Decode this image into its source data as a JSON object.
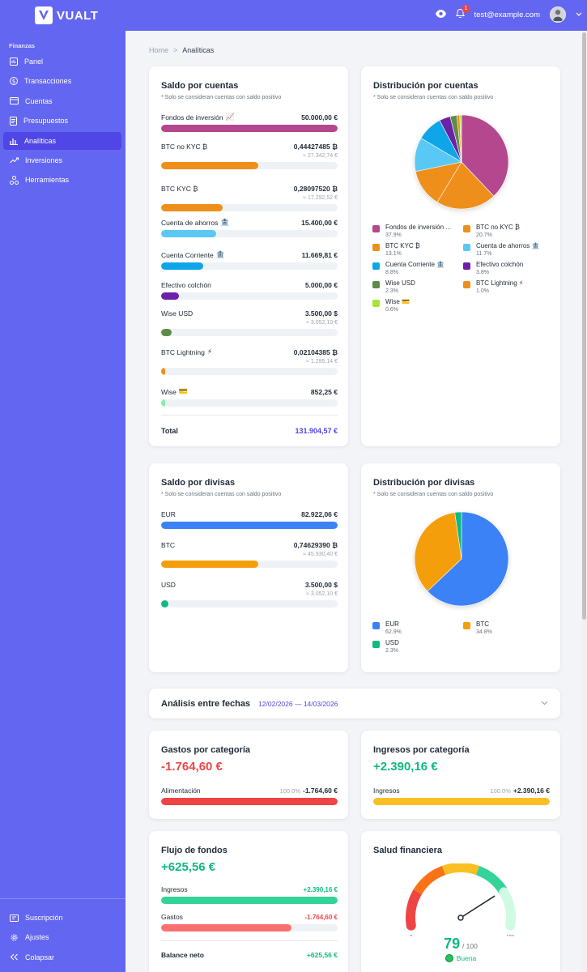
{
  "app": {
    "name": "VUALT",
    "logo_letter": "V"
  },
  "header": {
    "notifications": "1",
    "user_email": "test@example.com"
  },
  "sidebar": {
    "section": "Finanzas",
    "items": [
      {
        "label": "Panel",
        "icon": "dashboard-icon"
      },
      {
        "label": "Transacciones",
        "icon": "dollar-icon"
      },
      {
        "label": "Cuentas",
        "icon": "card-icon"
      },
      {
        "label": "Presupuestos",
        "icon": "document-icon"
      },
      {
        "label": "Analíticas",
        "icon": "chart-icon"
      },
      {
        "label": "Inversiones",
        "icon": "trend-icon"
      },
      {
        "label": "Herramientas",
        "icon": "tools-icon"
      }
    ],
    "bottom": [
      {
        "label": "Suscripción",
        "icon": "ticket-icon"
      },
      {
        "label": "Ajustes",
        "icon": "gear-icon"
      },
      {
        "label": "Colapsar",
        "icon": "collapse-icon"
      }
    ]
  },
  "breadcrumb": {
    "home": "Home",
    "sep": ">",
    "current": "Analíticas"
  },
  "accounts": {
    "title": "Saldo por cuentas",
    "note": "* Solo se consideran cuentas con saldo positivo",
    "items": [
      {
        "name": "Fondos de inversión",
        "icon": "📈",
        "value": "50.000,00 €",
        "approx": "",
        "pct": 100,
        "color": "#b5478e"
      },
      {
        "name": "BTC no KYC ₿",
        "icon": "",
        "value": "0,44427485 ₿",
        "approx": "≈ 27.342,74 €",
        "pct": 55,
        "color": "#ee8f1c"
      },
      {
        "name": "BTC KYC ₿",
        "icon": "",
        "value": "0,28097520 ₿",
        "approx": "≈ 17.292,52 €",
        "pct": 35,
        "color": "#ee8f1c"
      },
      {
        "name": "Cuenta de ahorros",
        "icon": "🏦",
        "value": "15.400,00 €",
        "approx": "",
        "pct": 31,
        "color": "#5ac8f5"
      },
      {
        "name": "Cuenta Corriente",
        "icon": "🏦",
        "value": "11.669,81 €",
        "approx": "",
        "pct": 24,
        "color": "#0ea5e9"
      },
      {
        "name": "Efectivo colchón",
        "icon": "",
        "value": "5.000,00 €",
        "approx": "",
        "pct": 10,
        "color": "#6b21a8"
      },
      {
        "name": "Wise USD",
        "icon": "",
        "value": "3.500,00 $",
        "approx": "≈ 3.052,10 €",
        "pct": 6,
        "color": "#5e8c46"
      },
      {
        "name": "BTC Lightning",
        "icon": "⚡",
        "value": "0,02104385 ₿",
        "approx": "≈ 1.295,14 €",
        "pct": 2.5,
        "color": "#ee8f1c"
      },
      {
        "name": "Wise",
        "icon": "💳",
        "value": "852,25 €",
        "approx": "",
        "pct": 2,
        "color": "#86efac"
      }
    ],
    "total_label": "Total",
    "total_value": "131.904,57 €"
  },
  "accounts_dist": {
    "title": "Distribución por cuentas",
    "note": "* Solo se consideran cuentas con saldo positivo",
    "legend": [
      {
        "label": "Fondos de inversión ...",
        "pct": "37.9%",
        "value": 37.9,
        "color": "#b5478e"
      },
      {
        "label": "BTC no KYC ₿",
        "pct": "20.7%",
        "value": 20.7,
        "color": "#ee8f1c"
      },
      {
        "label": "BTC KYC ₿",
        "pct": "13.1%",
        "value": 13.1,
        "color": "#ee8f1c"
      },
      {
        "label": "Cuenta de ahorros 🏦",
        "pct": "11.7%",
        "value": 11.7,
        "color": "#5ac8f5"
      },
      {
        "label": "Cuenta Corriente 🏦",
        "pct": "8.8%",
        "value": 8.8,
        "color": "#0ea5e9"
      },
      {
        "label": "Efectivo colchón",
        "pct": "3.8%",
        "value": 3.8,
        "color": "#6b21a8"
      },
      {
        "label": "Wise USD",
        "pct": "2.3%",
        "value": 2.3,
        "color": "#5e8c46"
      },
      {
        "label": "BTC Lightning ⚡",
        "pct": "1.0%",
        "value": 1.0,
        "color": "#ee8f1c"
      },
      {
        "label": "Wise 💳",
        "pct": "0.6%",
        "value": 0.6,
        "color": "#a3e635"
      }
    ]
  },
  "currencies": {
    "title": "Saldo por divisas",
    "note": "* Solo se consideran cuentas con saldo positivo",
    "items": [
      {
        "name": "EUR",
        "value": "82.922,06 €",
        "approx": "",
        "pct": 100,
        "color": "#3b82f6"
      },
      {
        "name": "BTC",
        "value": "0,74629390 ₿",
        "approx": "≈ 45.930,40 €",
        "pct": 55,
        "color": "#f59e0b"
      },
      {
        "name": "USD",
        "value": "3.500,00 $",
        "approx": "≈ 3.052,10 €",
        "pct": 4,
        "color": "#10b981"
      }
    ]
  },
  "currencies_dist": {
    "title": "Distribución por divisas",
    "note": "* Solo se consideran cuentas con saldo positivo",
    "legend": [
      {
        "label": "EUR",
        "pct": "62.9%",
        "value": 62.9,
        "color": "#3b82f6"
      },
      {
        "label": "BTC",
        "pct": "34.8%",
        "value": 34.8,
        "color": "#f59e0b"
      },
      {
        "label": "USD",
        "pct": "2.3%",
        "value": 2.3,
        "color": "#10b981"
      }
    ]
  },
  "date_analysis": {
    "title": "Análisis entre fechas",
    "range": "12/02/2026 — 14/03/2026"
  },
  "expenses": {
    "title": "Gastos por categoría",
    "total": "-1.764,60 €",
    "category": "Alimentación",
    "pct": "100.0%",
    "amount": "-1.764,60 €",
    "fill": 100,
    "color": "#ef4444"
  },
  "income": {
    "title": "Ingresos por categoría",
    "total": "+2.390,16 €",
    "category": "Ingresos",
    "pct": "100.0%",
    "amount": "+2.390,16 €",
    "fill": 100,
    "color": "#fbbf24"
  },
  "cashflow": {
    "title": "Flujo de fondos",
    "total": "+625,56 €",
    "income_label": "Ingresos",
    "income_value": "+2.390,16 €",
    "income_fill": 100,
    "expense_label": "Gastos",
    "expense_value": "-1.764,60 €",
    "expense_fill": 74,
    "net_label": "Balance neto",
    "net_value": "+625,56 €"
  },
  "health": {
    "title": "Salud financiera",
    "score": "79",
    "max": "/ 100",
    "score_value": 79,
    "min_label": "0",
    "max_label": "100",
    "status": "Buena"
  }
}
